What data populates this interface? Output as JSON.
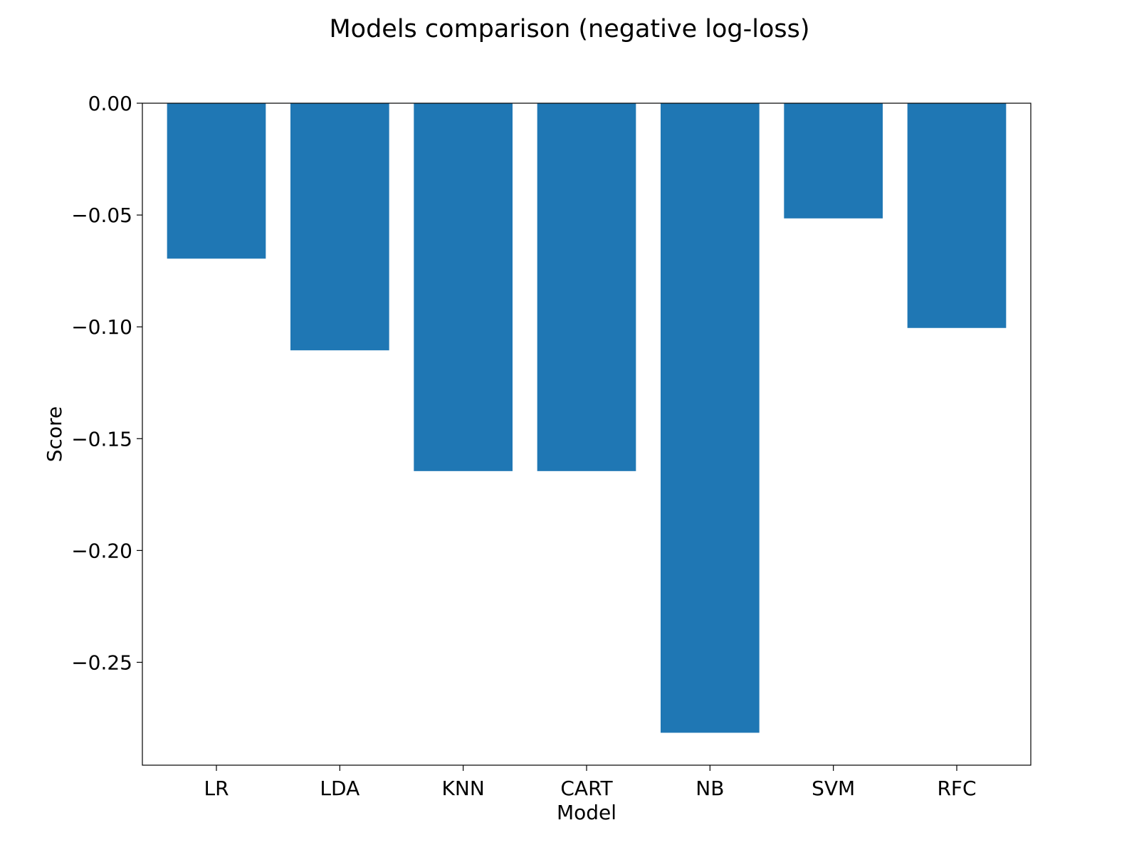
{
  "chart_data": {
    "type": "bar",
    "title": "Models comparison (negative log-loss)",
    "xlabel": "Model",
    "ylabel": "Score",
    "categories": [
      "LR",
      "LDA",
      "KNN",
      "CART",
      "NB",
      "SVM",
      "RFC"
    ],
    "values": [
      -0.0695,
      -0.1105,
      -0.1645,
      -0.1645,
      -0.2815,
      -0.0515,
      -0.1005
    ],
    "ylim": [
      -0.296,
      0.0
    ],
    "yticks": [
      0.0,
      -0.05,
      -0.1,
      -0.15,
      -0.2,
      -0.25
    ],
    "ytick_labels": [
      "0.00",
      "−0.05",
      "−0.10",
      "−0.15",
      "−0.20",
      "−0.25"
    ],
    "bar_color": "#1f77b4",
    "grid": false,
    "legend": false
  }
}
